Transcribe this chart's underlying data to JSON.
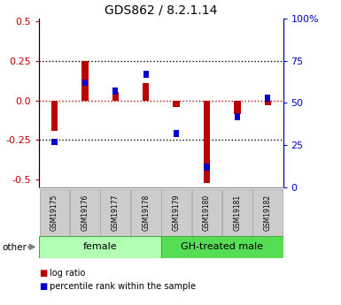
{
  "title": "GDS862 / 8.2.1.14",
  "samples": [
    "GSM19175",
    "GSM19176",
    "GSM19177",
    "GSM19178",
    "GSM19179",
    "GSM19180",
    "GSM19181",
    "GSM19182"
  ],
  "log_ratio": [
    -0.19,
    0.25,
    0.055,
    0.11,
    -0.04,
    -0.52,
    -0.085,
    -0.03
  ],
  "percentile_rank": [
    27,
    62,
    57,
    67,
    32,
    12,
    42,
    53
  ],
  "groups": [
    {
      "label": "female",
      "start": 0,
      "end": 4,
      "color": "#b3ffb3"
    },
    {
      "label": "GH-treated male",
      "start": 4,
      "end": 8,
      "color": "#55dd55"
    }
  ],
  "ylim_left": [
    -0.55,
    0.52
  ],
  "ylim_right": [
    0,
    100
  ],
  "yticks_left": [
    -0.5,
    -0.25,
    0.0,
    0.25,
    0.5
  ],
  "yticks_right": [
    0,
    25,
    50,
    75,
    100
  ],
  "red_color": "#bb0000",
  "blue_color": "#0000cc",
  "gray_box": "#cccccc",
  "dotted_lines_black": [
    -0.25,
    0.25
  ],
  "dotted_line_red": 0.0,
  "group_border": "#44aa44"
}
